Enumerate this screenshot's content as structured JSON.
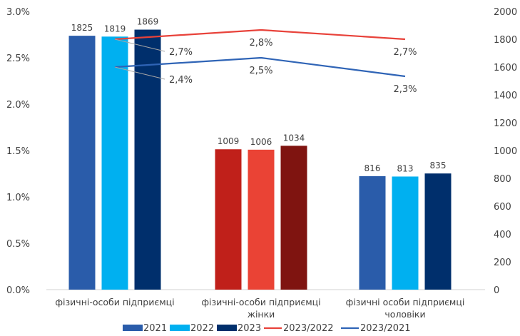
{
  "chart_data": {
    "type": "bar",
    "categories": [
      [
        "фізичні-особи підприємці"
      ],
      [
        "фізичні-особи підприємці",
        "жінки"
      ],
      [
        "фізичні особи підприємці",
        "чоловіки"
      ]
    ],
    "bar_series": [
      {
        "name": "2021",
        "values": [
          1825,
          1009,
          816
        ]
      },
      {
        "name": "2022",
        "values": [
          1819,
          1006,
          813
        ]
      },
      {
        "name": "2023",
        "values": [
          1869,
          1034,
          835
        ]
      }
    ],
    "bar_colors": [
      [
        "#2a5caa",
        "#00b0f0",
        "#002f6c"
      ],
      [
        "#c0201a",
        "#ea4335",
        "#7f1410"
      ],
      [
        "#2a5caa",
        "#00b0f0",
        "#002f6c"
      ]
    ],
    "line_series": [
      {
        "name": "2023/2022",
        "values": [
          2.7,
          2.8,
          2.7
        ],
        "labels": [
          "2,7%",
          "2,8%",
          "2,7%"
        ],
        "color": "#e8423a"
      },
      {
        "name": "2023/2021",
        "values": [
          2.4,
          2.5,
          2.3
        ],
        "labels": [
          "2,4%",
          "2,5%",
          "2,3%"
        ],
        "color": "#2f64b6"
      }
    ],
    "legend_colors": [
      "#2a5caa",
      "#00b0f0",
      "#002f6c"
    ],
    "y_left": {
      "min": 0,
      "max": 3.0,
      "step": 0.5,
      "tick_labels": [
        "0.0%",
        "0.5%",
        "1.0%",
        "1.5%",
        "2.0%",
        "2.5%",
        "3.0%"
      ]
    },
    "y_right": {
      "min": 0,
      "max": 2000,
      "step": 200,
      "tick_labels": [
        "0",
        "200",
        "400",
        "600",
        "800",
        "1000",
        "1200",
        "1400",
        "1600",
        "1800",
        "2000"
      ]
    },
    "grid": false,
    "legend_position": "bottom"
  }
}
